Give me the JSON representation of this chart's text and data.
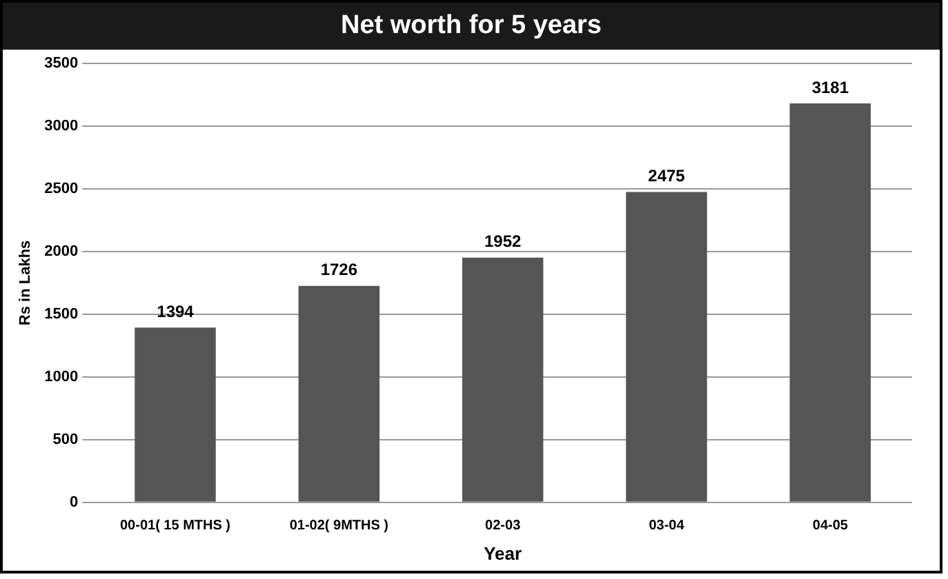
{
  "chart_data": {
    "type": "bar",
    "title": "Net worth for 5 years",
    "xlabel": "Year",
    "ylabel": "Rs in Lakhs",
    "categories": [
      "00-01( 15 MTHS )",
      "01-02( 9MTHS )",
      "02-03",
      "03-04",
      "04-05"
    ],
    "values": [
      1394,
      1726,
      1952,
      2475,
      3181
    ],
    "color": "#555555",
    "ylim": [
      0,
      3500
    ],
    "yticks": [
      0,
      500,
      1000,
      1500,
      2000,
      2500,
      3000,
      3500
    ],
    "grid": "y",
    "data_labels": true
  }
}
